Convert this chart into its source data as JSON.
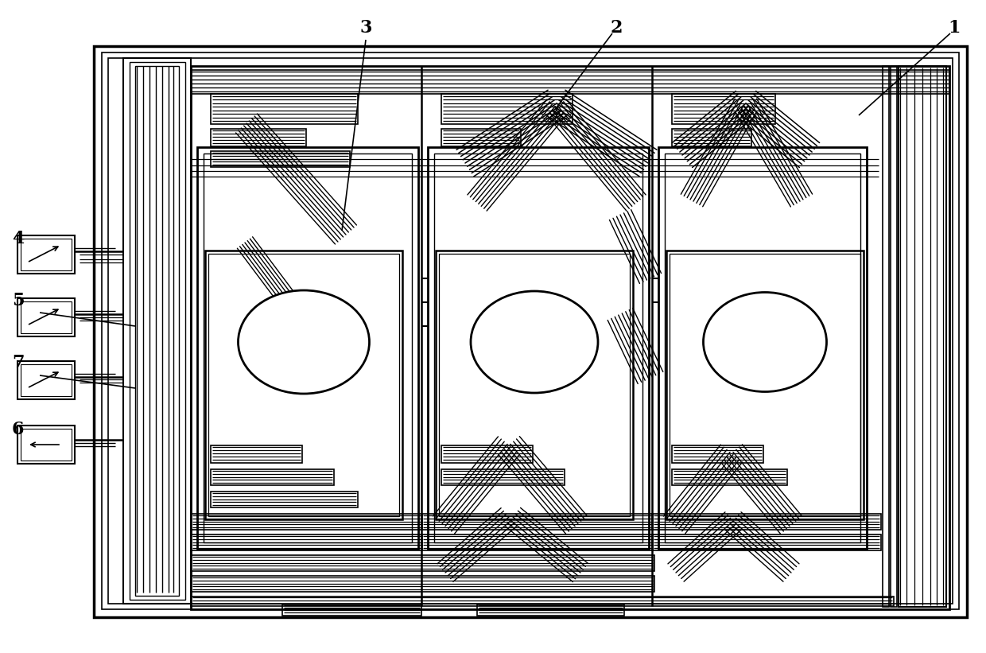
{
  "fig_width": 12.4,
  "fig_height": 8.21,
  "bg_color": "#ffffff",
  "lc": "#000000"
}
